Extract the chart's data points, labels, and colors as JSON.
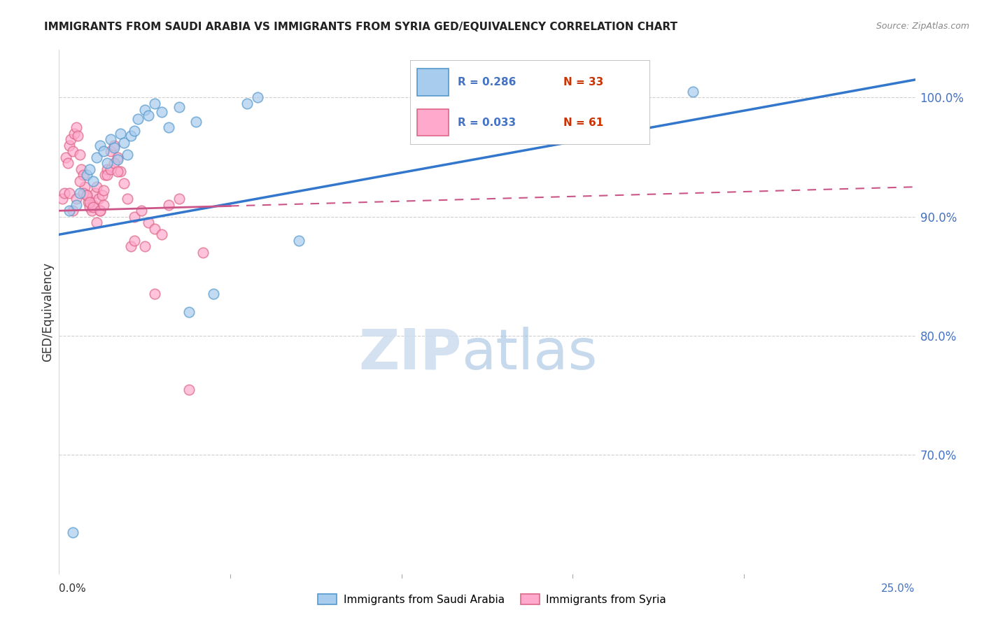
{
  "title": "IMMIGRANTS FROM SAUDI ARABIA VS IMMIGRANTS FROM SYRIA GED/EQUIVALENCY CORRELATION CHART",
  "source": "Source: ZipAtlas.com",
  "ylabel": "GED/Equivalency",
  "R_blue": 0.286,
  "N_blue": 33,
  "R_pink": 0.033,
  "N_pink": 61,
  "legend_label_blue": "Immigrants from Saudi Arabia",
  "legend_label_pink": "Immigrants from Syria",
  "blue_dot_color": "#a8ccee",
  "blue_edge_color": "#5599cc",
  "pink_dot_color": "#ffaacc",
  "pink_edge_color": "#dd6688",
  "trend_blue_color": "#3377cc",
  "trend_pink_color": "#cc5588",
  "xmin": 0.0,
  "xmax": 25.0,
  "ymin": 60.0,
  "ymax": 104.0,
  "yticks": [
    70.0,
    80.0,
    90.0,
    100.0
  ],
  "blue_trend_y0": 88.5,
  "blue_trend_y1": 101.5,
  "pink_trend_y0": 90.5,
  "pink_trend_y1": 92.5,
  "pink_solid_x_end": 5.0,
  "blue_scatter_x": [
    0.3,
    0.5,
    0.6,
    0.8,
    0.9,
    1.0,
    1.1,
    1.2,
    1.3,
    1.4,
    1.5,
    1.6,
    1.7,
    1.8,
    1.9,
    2.0,
    2.1,
    2.2,
    2.3,
    2.5,
    2.6,
    2.8,
    3.0,
    3.2,
    3.5,
    3.8,
    4.0,
    4.5,
    5.5,
    5.8,
    7.0,
    18.5,
    0.4
  ],
  "blue_scatter_y": [
    90.5,
    91.0,
    92.0,
    93.5,
    94.0,
    93.0,
    95.0,
    96.0,
    95.5,
    94.5,
    96.5,
    95.8,
    94.8,
    97.0,
    96.2,
    95.2,
    96.8,
    97.2,
    98.2,
    99.0,
    98.5,
    99.5,
    98.8,
    97.5,
    99.2,
    82.0,
    98.0,
    83.5,
    99.5,
    100.0,
    88.0,
    100.5,
    63.5
  ],
  "pink_scatter_x": [
    0.1,
    0.15,
    0.2,
    0.25,
    0.3,
    0.35,
    0.4,
    0.45,
    0.5,
    0.55,
    0.6,
    0.65,
    0.7,
    0.75,
    0.8,
    0.85,
    0.9,
    0.95,
    1.0,
    1.05,
    1.1,
    1.15,
    1.2,
    1.25,
    1.3,
    1.35,
    1.4,
    1.5,
    1.6,
    1.7,
    1.8,
    1.9,
    2.0,
    2.1,
    2.2,
    2.4,
    2.6,
    2.8,
    3.0,
    3.2,
    3.5,
    4.2,
    0.3,
    0.4,
    0.5,
    0.6,
    0.7,
    0.8,
    0.9,
    1.0,
    1.1,
    1.2,
    1.3,
    1.4,
    1.5,
    1.6,
    1.7,
    2.2,
    2.5,
    2.8,
    3.8
  ],
  "pink_scatter_y": [
    91.5,
    92.0,
    95.0,
    94.5,
    96.0,
    96.5,
    95.5,
    97.0,
    97.5,
    96.8,
    95.2,
    94.0,
    93.5,
    92.5,
    91.8,
    91.2,
    90.8,
    90.5,
    91.0,
    92.0,
    92.5,
    91.5,
    90.5,
    91.8,
    92.2,
    93.5,
    94.0,
    95.5,
    96.0,
    95.0,
    93.8,
    92.8,
    91.5,
    87.5,
    90.0,
    90.5,
    89.5,
    89.0,
    88.5,
    91.0,
    91.5,
    87.0,
    92.0,
    90.5,
    91.5,
    93.0,
    92.0,
    91.8,
    91.2,
    90.8,
    89.5,
    90.5,
    91.0,
    93.5,
    94.0,
    94.5,
    93.8,
    88.0,
    87.5,
    83.5,
    75.5
  ]
}
